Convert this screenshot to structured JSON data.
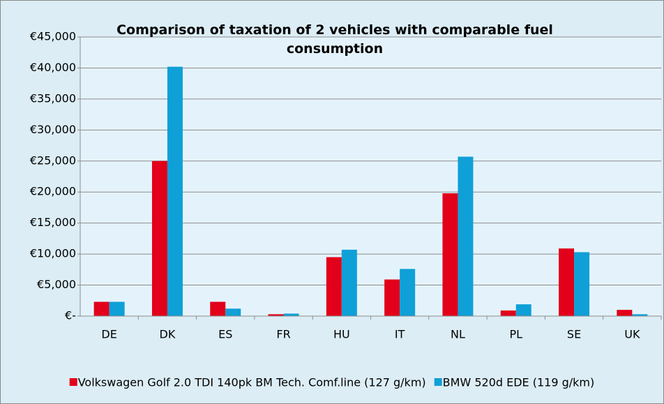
{
  "chart_data": {
    "type": "bar",
    "title": "Comparison of taxation of 2 vehicles with comparable fuel consumption",
    "categories": [
      "DE",
      "DK",
      "ES",
      "FR",
      "HU",
      "IT",
      "NL",
      "PL",
      "SE",
      "UK"
    ],
    "series": [
      {
        "name": "Volkswagen Golf 2.0 TDI 140pk BM Tech. Comf.line (127 g/km)",
        "color": "#e2001a",
        "values": [
          2300,
          25000,
          2300,
          300,
          9500,
          5900,
          19800,
          900,
          10900,
          1000
        ]
      },
      {
        "name": "BMW 520d EDE (119 g/km)",
        "color": "#0fa0d7",
        "values": [
          2300,
          40200,
          1200,
          400,
          10700,
          7600,
          25700,
          1900,
          10300,
          300
        ]
      }
    ],
    "ylim": [
      0,
      45000
    ],
    "yticks": [
      {
        "value": 0,
        "label": "€-"
      },
      {
        "value": 5000,
        "label": "€5,000"
      },
      {
        "value": 10000,
        "label": "€10,000"
      },
      {
        "value": 15000,
        "label": "€15,000"
      },
      {
        "value": 20000,
        "label": "€20,000"
      },
      {
        "value": 25000,
        "label": "€25,000"
      },
      {
        "value": 30000,
        "label": "€30,000"
      },
      {
        "value": 35000,
        "label": "€35,000"
      },
      {
        "value": 40000,
        "label": "€40,000"
      },
      {
        "value": 45000,
        "label": "€45,000"
      }
    ],
    "grid": true,
    "legend": "bottom"
  }
}
